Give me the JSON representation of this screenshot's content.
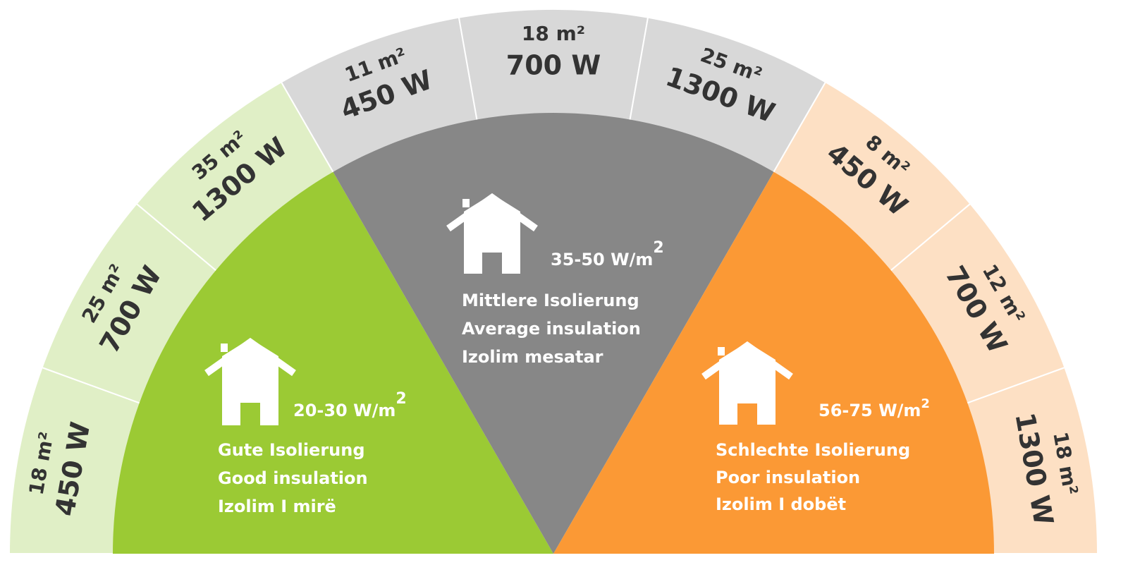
{
  "colors": {
    "good_core": "#9bca34",
    "good_ring": "#e0efc6",
    "average_core": "#878787",
    "average_ring": "#d8d8d8",
    "poor_core": "#fb9935",
    "poor_ring": "#fde0c4",
    "ring_text": "#333333",
    "core_text": "#ffffff"
  },
  "groups": [
    {
      "key": "good",
      "range": "20-30 W/m",
      "range_sup": "2",
      "lines": [
        "Gute Isolierung",
        "Good insulation",
        "Izolim I mirë"
      ],
      "icon": "house-icon",
      "segments": [
        {
          "area": "18 m²",
          "power": "450 W"
        },
        {
          "area": "25 m²",
          "power": "700 W"
        },
        {
          "area": "35 m²",
          "power": "1300 W"
        }
      ]
    },
    {
      "key": "average",
      "range": "35-50 W/m",
      "range_sup": "2",
      "lines": [
        "Mittlere Isolierung",
        "Average insulation",
        "Izolim mesatar"
      ],
      "icon": "house-icon",
      "segments": [
        {
          "area": "11 m²",
          "power": "450 W"
        },
        {
          "area": "18 m²",
          "power": "700 W"
        },
        {
          "area": "25 m²",
          "power": "1300 W"
        }
      ]
    },
    {
      "key": "poor",
      "range": "56-75 W/m",
      "range_sup": "2",
      "lines": [
        "Schlechte Isolierung",
        "Poor insulation",
        "Izolim I dobët"
      ],
      "icon": "house-icon",
      "segments": [
        {
          "area": "8 m²",
          "power": "450 W"
        },
        {
          "area": "12 m²",
          "power": "700 W"
        },
        {
          "area": "18 m²",
          "power": "1300 W"
        }
      ]
    }
  ]
}
